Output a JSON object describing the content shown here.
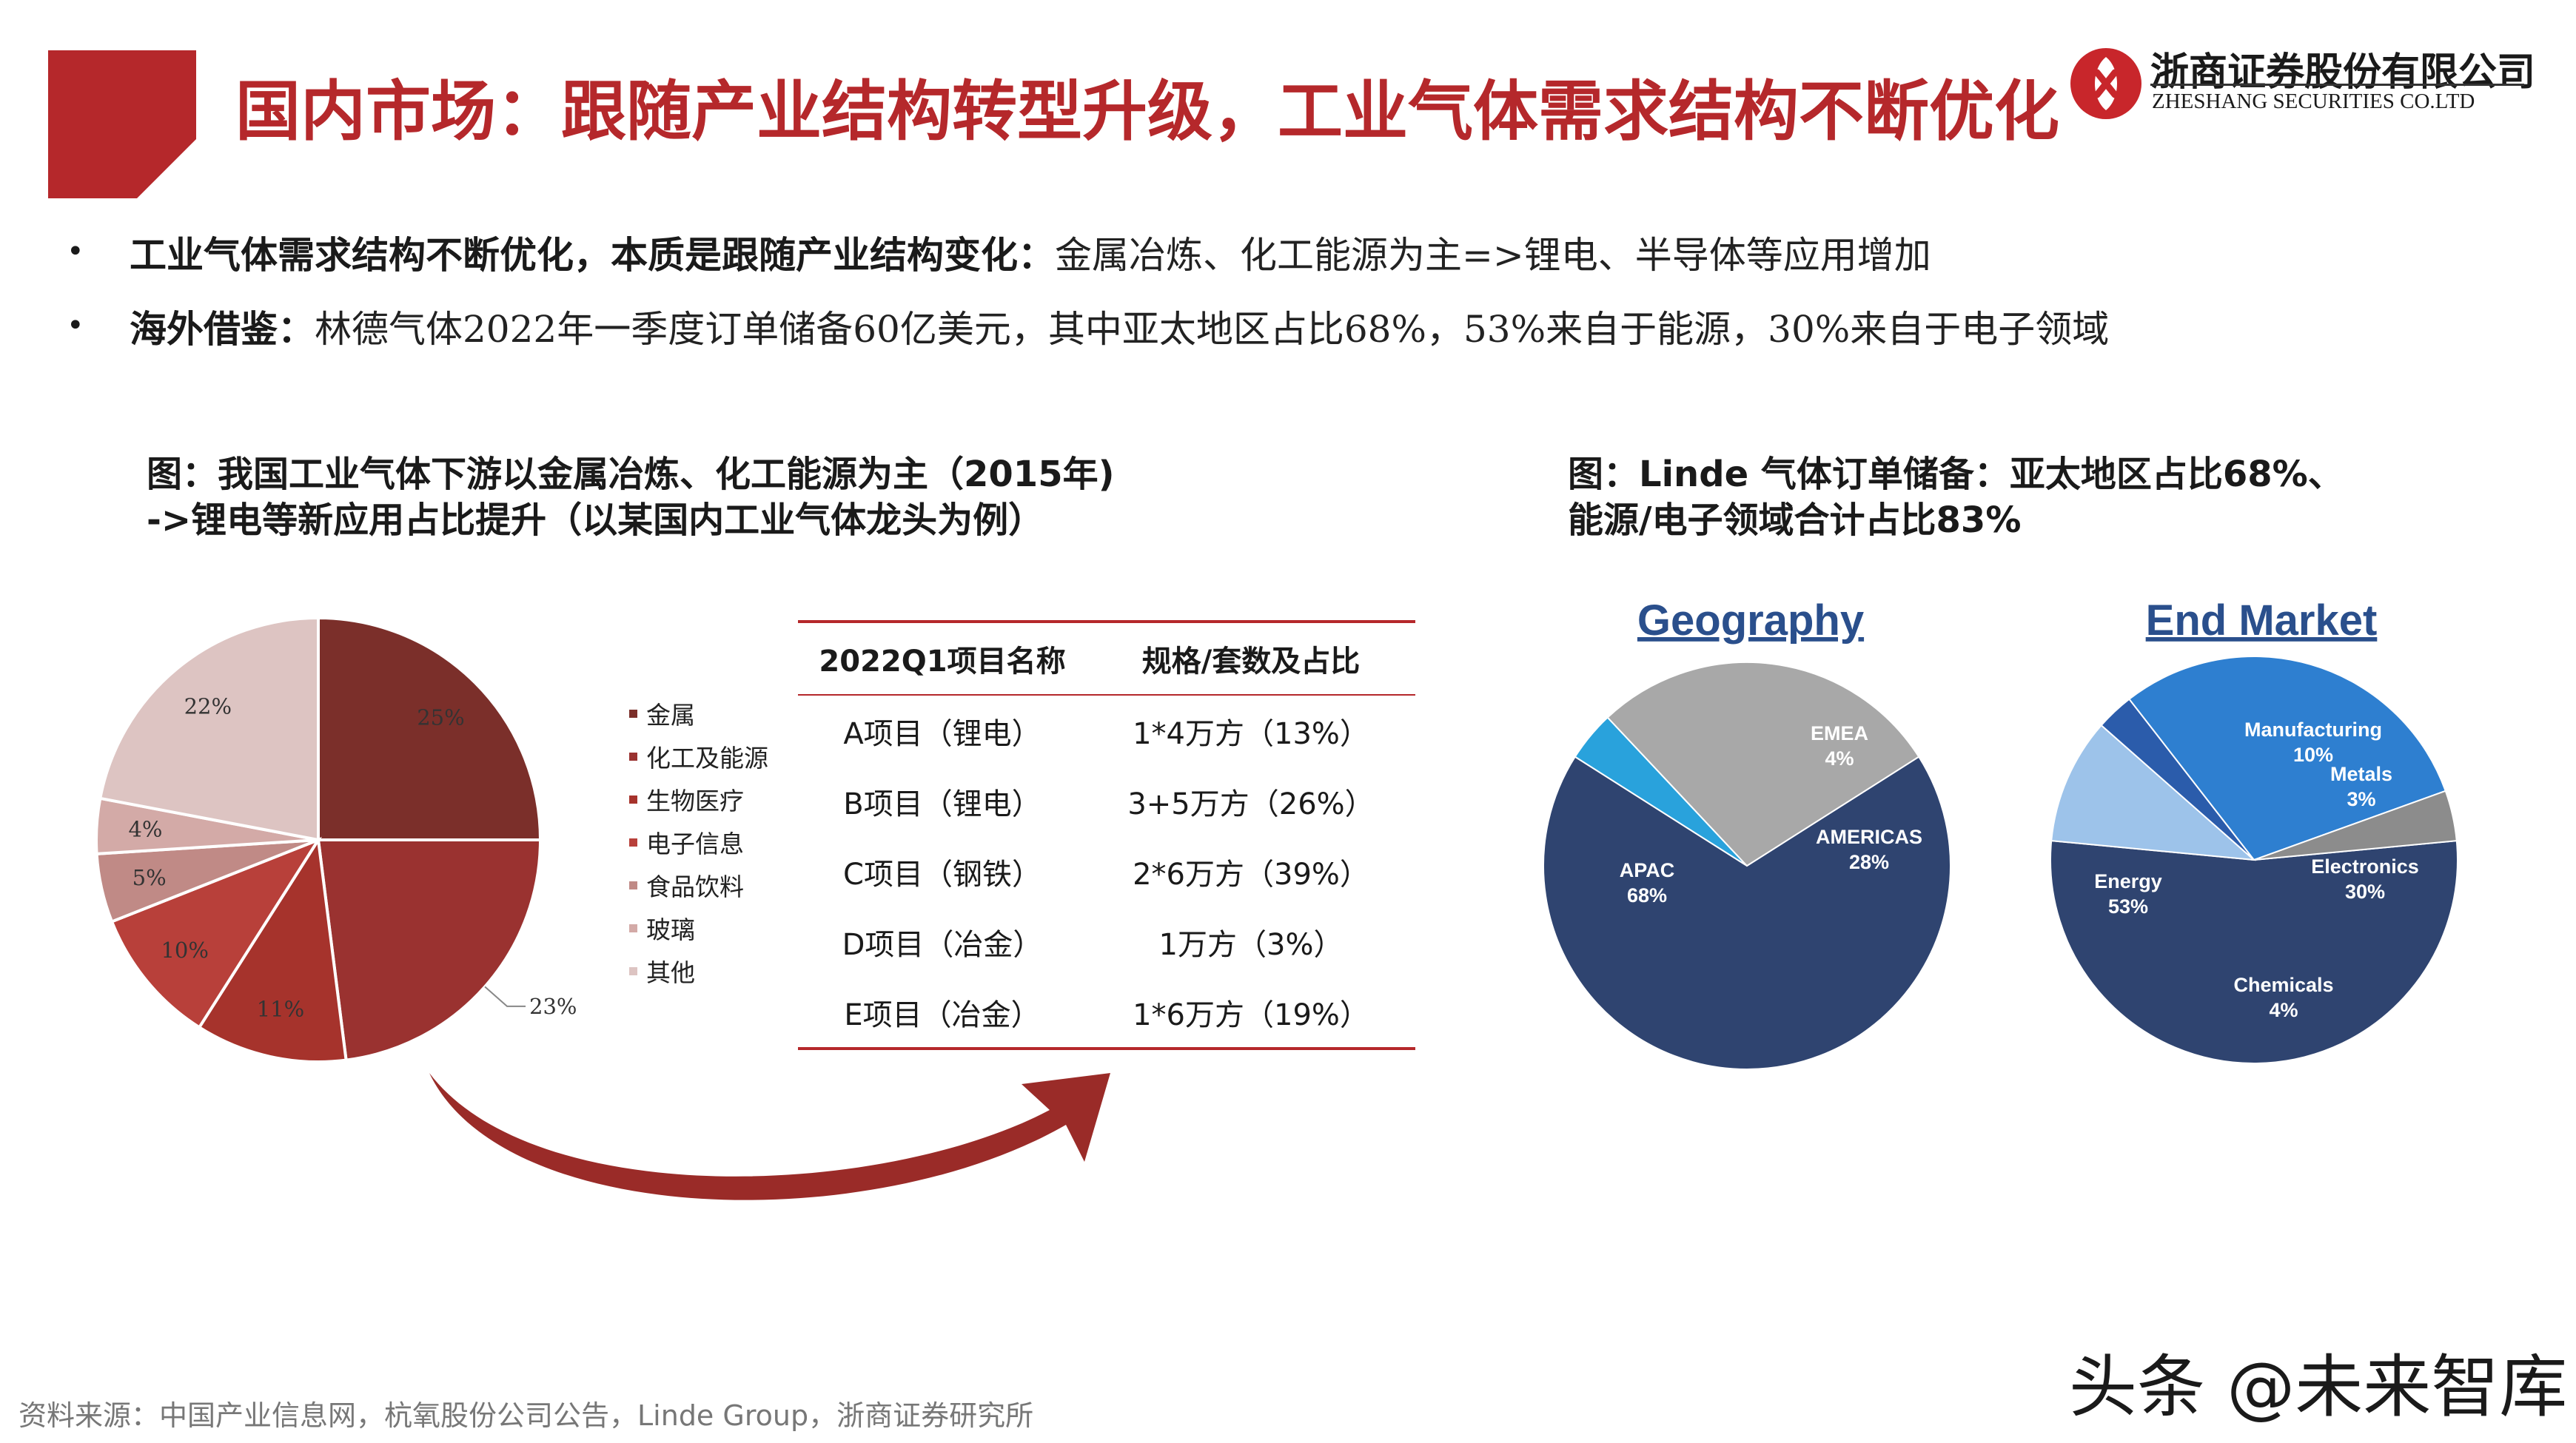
{
  "header": {
    "title": "国内市场：跟随产业结构转型升级，工业气体需求结构不断优化",
    "logo_cn": "浙商证券股份有限公司",
    "logo_en": "ZHESHANG SECURITIES CO.LTD",
    "accent_color": "#b5282b"
  },
  "bullets": [
    {
      "lead": "工业气体需求结构不断优化，本质是跟随产业结构变化：",
      "text": "金属冶炼、化工能源为主=>锂电、半导体等应用增加"
    },
    {
      "lead": "海外借鉴：",
      "text": "林德气体2022年一季度订单储备60亿美元，其中亚太地区占比68%，53%来自于能源，30%来自于电子领域"
    }
  ],
  "left_figure": {
    "title_line1": "图：我国工业气体下游以金属冶炼、化工能源为主（2015年)",
    "title_line2": "->锂电等新应用占比提升（以某国内工业气体龙头为例）"
  },
  "chart_data": [
    {
      "type": "pie",
      "categories": [
        "金属",
        "化工及能源",
        "生物医疗",
        "电子信息",
        "食品饮料",
        "玻璃",
        "其他"
      ],
      "values": [
        25,
        23,
        11,
        10,
        5,
        4,
        22
      ],
      "labels": [
        "25%",
        "23%",
        "11%",
        "10%",
        "5%",
        "4%",
        "22%"
      ],
      "colors": [
        "#7b2f2a",
        "#9a3230",
        "#a6332c",
        "#b8403a",
        "#c08a86",
        "#d3aaa7",
        "#ddc4c2"
      ]
    },
    {
      "type": "pie",
      "title": "Geography",
      "categories": [
        "APAC",
        "EMEA",
        "AMERICAS"
      ],
      "values": [
        68,
        4,
        28
      ],
      "labels": [
        "APAC\n68%",
        "EMEA\n4%",
        "AMERICAS\n28%"
      ],
      "colors": [
        "#2f4470",
        "#29a2dc",
        "#a8a8a8"
      ]
    },
    {
      "type": "pie",
      "title": "End Market",
      "categories": [
        "Energy",
        "Manufacturing",
        "Metals",
        "Electronics",
        "Chemicals"
      ],
      "values": [
        53,
        10,
        3,
        30,
        4
      ],
      "labels": [
        "Energy\n53%",
        "Manufacturing\n10%",
        "Metals\n3%",
        "Electronics\n30%",
        "Chemicals\n4%"
      ],
      "colors": [
        "#2f4470",
        "#9dc3ea",
        "#2b5cab",
        "#2e7fd0",
        "#8c8c8c"
      ]
    }
  ],
  "table": {
    "headers": [
      "2022Q1项目名称",
      "规格/套数及占比"
    ],
    "rows": [
      [
        "A项目（锂电）",
        "1*4万方（13%）"
      ],
      [
        "B项目（锂电）",
        "3+5万方（26%）"
      ],
      [
        "C项目（钢铁）",
        "2*6万方（39%）"
      ],
      [
        "D项目（冶金）",
        "1万方（3%）"
      ],
      [
        "E项目（冶金）",
        "1*6万方（19%）"
      ]
    ]
  },
  "right_figure": {
    "title_line1": "图：Linde 气体订单储备：亚太地区占比68%、",
    "title_line2": "能源/电子领域合计占比83%"
  },
  "footer": {
    "source": "资料来源：中国产业信息网，杭氧股份公司公告，Linde Group，浙商证券研究所",
    "watermark": "头条 @未来智库"
  }
}
